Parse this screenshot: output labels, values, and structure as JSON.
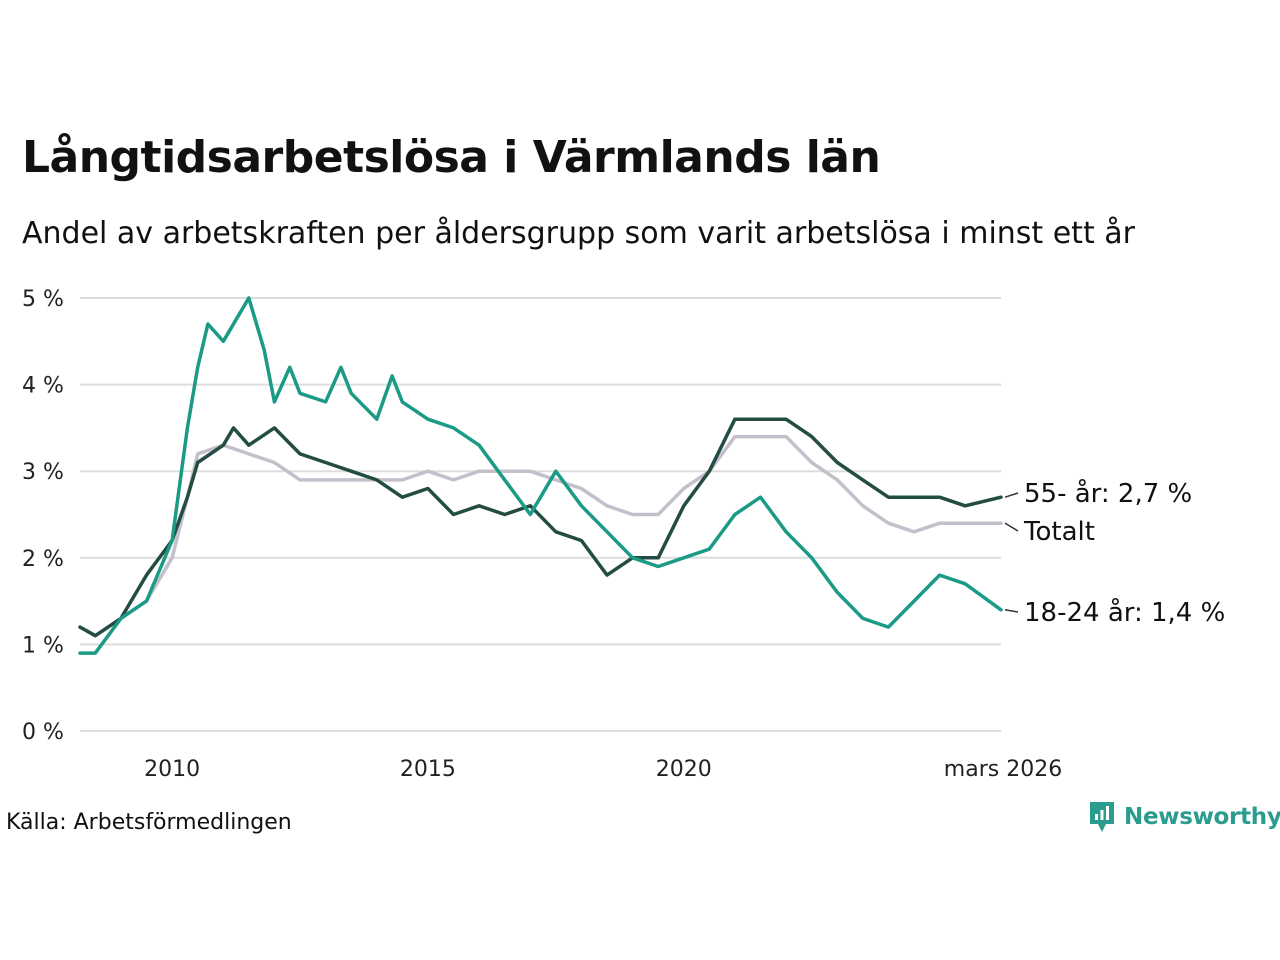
{
  "header": {
    "title": "Långtidsarbetslösa i Värmlands län",
    "subtitle": "Andel av arbetskraften per åldersgrupp som varit arbetslösa i minst ett år"
  },
  "footer": {
    "source": "Källa: Arbetsförmedlingen",
    "brand": "Newsworthy"
  },
  "colors": {
    "young": "#1b9a86",
    "senior": "#234d43",
    "total": "#c3c0cb",
    "grid": "#dddddd",
    "brand": "#2a9d8f"
  },
  "chart_data": {
    "type": "line",
    "title": "Långtidsarbetslösa i Värmlands län",
    "subtitle": "Andel av arbetskraften per åldersgrupp som varit arbetslösa i minst ett år",
    "xlabel": "",
    "ylabel": "",
    "xlim": [
      2008.2,
      2026.2
    ],
    "ylim": [
      0,
      5
    ],
    "grid": true,
    "x_ticks": [
      {
        "value": 2010,
        "label": "2010"
      },
      {
        "value": 2015,
        "label": "2015"
      },
      {
        "value": 2020,
        "label": "2020"
      },
      {
        "value": 2026.2,
        "label": "mars 2026"
      }
    ],
    "y_ticks": [
      {
        "value": 0,
        "label": "0 %"
      },
      {
        "value": 1,
        "label": "1 %"
      },
      {
        "value": 2,
        "label": "2 %"
      },
      {
        "value": 3,
        "label": "3 %"
      },
      {
        "value": 4,
        "label": "4 %"
      },
      {
        "value": 5,
        "label": "5 %"
      }
    ],
    "series": [
      {
        "name": "Totalt",
        "label": "Totalt",
        "color_key": "total",
        "x": [
          2008.2,
          2008.5,
          2009.0,
          2009.5,
          2010.0,
          2010.3,
          2010.5,
          2011.0,
          2011.5,
          2012.0,
          2012.5,
          2013.0,
          2013.5,
          2014.0,
          2014.5,
          2015.0,
          2015.5,
          2016.0,
          2016.5,
          2017.0,
          2017.5,
          2018.0,
          2018.5,
          2019.0,
          2019.5,
          2020.0,
          2020.5,
          2021.0,
          2021.5,
          2022.0,
          2022.5,
          2023.0,
          2023.5,
          2024.0,
          2024.5,
          2025.0,
          2025.5,
          2026.2
        ],
        "y": [
          1.2,
          1.1,
          1.3,
          1.5,
          2.0,
          2.7,
          3.2,
          3.3,
          3.2,
          3.1,
          2.9,
          2.9,
          2.9,
          2.9,
          2.9,
          3.0,
          2.9,
          3.0,
          3.0,
          3.0,
          2.9,
          2.8,
          2.6,
          2.5,
          2.5,
          2.8,
          3.0,
          3.4,
          3.4,
          3.4,
          3.1,
          2.9,
          2.6,
          2.4,
          2.3,
          2.4,
          2.4,
          2.4
        ]
      },
      {
        "name": "55- år",
        "label": "55- år: 2,7 %",
        "color_key": "senior",
        "x": [
          2008.2,
          2008.5,
          2009.0,
          2009.5,
          2010.0,
          2010.3,
          2010.5,
          2011.0,
          2011.2,
          2011.5,
          2012.0,
          2012.5,
          2013.0,
          2013.5,
          2014.0,
          2014.5,
          2015.0,
          2015.5,
          2016.0,
          2016.5,
          2017.0,
          2017.5,
          2018.0,
          2018.5,
          2019.0,
          2019.5,
          2020.0,
          2020.5,
          2021.0,
          2021.5,
          2022.0,
          2022.5,
          2023.0,
          2023.5,
          2024.0,
          2024.5,
          2025.0,
          2025.5,
          2026.2
        ],
        "y": [
          1.2,
          1.1,
          1.3,
          1.8,
          2.2,
          2.7,
          3.1,
          3.3,
          3.5,
          3.3,
          3.5,
          3.2,
          3.1,
          3.0,
          2.9,
          2.7,
          2.8,
          2.5,
          2.6,
          2.5,
          2.6,
          2.3,
          2.2,
          1.8,
          2.0,
          2.0,
          2.6,
          3.0,
          3.6,
          3.6,
          3.6,
          3.4,
          3.1,
          2.9,
          2.7,
          2.7,
          2.7,
          2.6,
          2.7
        ]
      },
      {
        "name": "18-24 år",
        "label": "18-24 år: 1,4 %",
        "color_key": "young",
        "x": [
          2008.2,
          2008.5,
          2009.0,
          2009.5,
          2010.0,
          2010.3,
          2010.5,
          2010.7,
          2011.0,
          2011.3,
          2011.5,
          2011.8,
          2012.0,
          2012.3,
          2012.5,
          2013.0,
          2013.3,
          2013.5,
          2014.0,
          2014.3,
          2014.5,
          2015.0,
          2015.5,
          2016.0,
          2016.5,
          2017.0,
          2017.5,
          2018.0,
          2018.5,
          2019.0,
          2019.5,
          2020.0,
          2020.5,
          2021.0,
          2021.5,
          2022.0,
          2022.5,
          2023.0,
          2023.5,
          2024.0,
          2024.5,
          2025.0,
          2025.5,
          2026.2
        ],
        "y": [
          0.9,
          0.9,
          1.3,
          1.5,
          2.2,
          3.5,
          4.2,
          4.7,
          4.5,
          4.8,
          5.0,
          4.4,
          3.8,
          4.2,
          3.9,
          3.8,
          4.2,
          3.9,
          3.6,
          4.1,
          3.8,
          3.6,
          3.5,
          3.3,
          2.9,
          2.5,
          3.0,
          2.6,
          2.3,
          2.0,
          1.9,
          2.0,
          2.1,
          2.5,
          2.7,
          2.3,
          2.0,
          1.6,
          1.3,
          1.2,
          1.5,
          1.8,
          1.7,
          1.4
        ]
      }
    ]
  }
}
